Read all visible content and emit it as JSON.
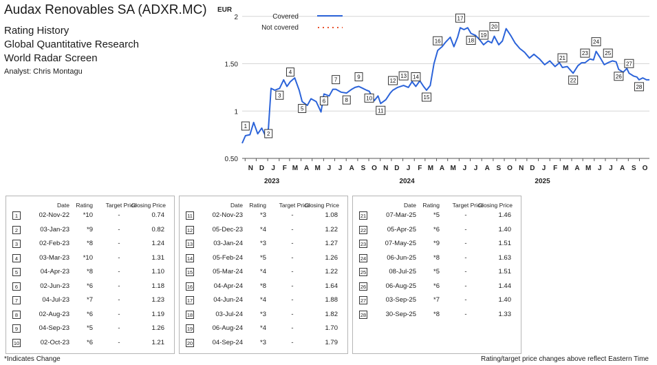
{
  "header": {
    "company": "Audax Renovables SA (ADXR.MC)",
    "line1": "Rating History",
    "line2": "Global Quantitative Research",
    "line3": "World Radar Screen",
    "analyst": "Analyst: Chris Montagu"
  },
  "table_headers": {
    "date": "Date",
    "rating": "Rating",
    "target": "Target Price",
    "close": "Closing Price"
  },
  "ratings": [
    {
      "n": "1",
      "date": "02-Nov-22",
      "rating": "*10",
      "target": "-",
      "close": "0.74"
    },
    {
      "n": "2",
      "date": "03-Jan-23",
      "rating": "*9",
      "target": "-",
      "close": "0.82"
    },
    {
      "n": "3",
      "date": "02-Feb-23",
      "rating": "*8",
      "target": "-",
      "close": "1.24"
    },
    {
      "n": "4",
      "date": "03-Mar-23",
      "rating": "*10",
      "target": "-",
      "close": "1.31"
    },
    {
      "n": "5",
      "date": "04-Apr-23",
      "rating": "*8",
      "target": "-",
      "close": "1.10"
    },
    {
      "n": "6",
      "date": "02-Jun-23",
      "rating": "*6",
      "target": "-",
      "close": "1.18"
    },
    {
      "n": "7",
      "date": "04-Jul-23",
      "rating": "*7",
      "target": "-",
      "close": "1.23"
    },
    {
      "n": "8",
      "date": "02-Aug-23",
      "rating": "*6",
      "target": "-",
      "close": "1.19"
    },
    {
      "n": "9",
      "date": "04-Sep-23",
      "rating": "*5",
      "target": "-",
      "close": "1.26"
    },
    {
      "n": "10",
      "date": "02-Oct-23",
      "rating": "*6",
      "target": "-",
      "close": "1.21"
    },
    {
      "n": "11",
      "date": "02-Nov-23",
      "rating": "*3",
      "target": "-",
      "close": "1.08"
    },
    {
      "n": "12",
      "date": "05-Dec-23",
      "rating": "*4",
      "target": "-",
      "close": "1.22"
    },
    {
      "n": "13",
      "date": "03-Jan-24",
      "rating": "*3",
      "target": "-",
      "close": "1.27"
    },
    {
      "n": "14",
      "date": "05-Feb-24",
      "rating": "*5",
      "target": "-",
      "close": "1.26"
    },
    {
      "n": "15",
      "date": "05-Mar-24",
      "rating": "*4",
      "target": "-",
      "close": "1.22"
    },
    {
      "n": "16",
      "date": "04-Apr-24",
      "rating": "*8",
      "target": "-",
      "close": "1.64"
    },
    {
      "n": "17",
      "date": "04-Jun-24",
      "rating": "*4",
      "target": "-",
      "close": "1.88"
    },
    {
      "n": "18",
      "date": "03-Jul-24",
      "rating": "*3",
      "target": "-",
      "close": "1.82"
    },
    {
      "n": "19",
      "date": "06-Aug-24",
      "rating": "*4",
      "target": "-",
      "close": "1.70"
    },
    {
      "n": "20",
      "date": "04-Sep-24",
      "rating": "*3",
      "target": "-",
      "close": "1.79"
    },
    {
      "n": "21",
      "date": "07-Mar-25",
      "rating": "*5",
      "target": "-",
      "close": "1.46"
    },
    {
      "n": "22",
      "date": "05-Apr-25",
      "rating": "*6",
      "target": "-",
      "close": "1.40"
    },
    {
      "n": "23",
      "date": "07-May-25",
      "rating": "*9",
      "target": "-",
      "close": "1.51"
    },
    {
      "n": "24",
      "date": "06-Jun-25",
      "rating": "*8",
      "target": "-",
      "close": "1.63"
    },
    {
      "n": "25",
      "date": "08-Jul-25",
      "rating": "*5",
      "target": "-",
      "close": "1.51"
    },
    {
      "n": "26",
      "date": "06-Aug-25",
      "rating": "*6",
      "target": "-",
      "close": "1.44"
    },
    {
      "n": "27",
      "date": "03-Sep-25",
      "rating": "*7",
      "target": "-",
      "close": "1.40"
    },
    {
      "n": "28",
      "date": "30-Sep-25",
      "rating": "*8",
      "target": "-",
      "close": "1.33"
    }
  ],
  "footer": {
    "left": "*Indicates Change",
    "right": "Rating/target price changes above reflect Eastern Time"
  },
  "colors": {
    "covered": "#2b63d9",
    "not_covered": "#e8502a",
    "grid": "#d6d6d6"
  },
  "chart_data": {
    "type": "line",
    "ylabel": "EUR",
    "ylim": [
      0.5,
      2.1
    ],
    "yticks": [
      0.5,
      1,
      1.5,
      2
    ],
    "ytick_labels": [
      "0.50",
      "1",
      "1.50",
      "2"
    ],
    "xlim": [
      "2022-10-24",
      "2025-10-28"
    ],
    "month_ticks": [
      {
        "label": "N",
        "date": "2022-11-01"
      },
      {
        "label": "D",
        "date": "2022-12-01"
      },
      {
        "label": "J",
        "date": "2023-01-01"
      },
      {
        "label": "F",
        "date": "2023-02-01"
      },
      {
        "label": "M",
        "date": "2023-03-01"
      },
      {
        "label": "A",
        "date": "2023-04-01"
      },
      {
        "label": "M",
        "date": "2023-05-01"
      },
      {
        "label": "J",
        "date": "2023-06-01"
      },
      {
        "label": "J",
        "date": "2023-07-01"
      },
      {
        "label": "A",
        "date": "2023-08-01"
      },
      {
        "label": "S",
        "date": "2023-09-01"
      },
      {
        "label": "O",
        "date": "2023-10-01"
      },
      {
        "label": "N",
        "date": "2023-11-01"
      },
      {
        "label": "D",
        "date": "2023-12-01"
      },
      {
        "label": "J",
        "date": "2024-01-01"
      },
      {
        "label": "F",
        "date": "2024-02-01"
      },
      {
        "label": "M",
        "date": "2024-03-01"
      },
      {
        "label": "A",
        "date": "2024-04-01"
      },
      {
        "label": "M",
        "date": "2024-05-01"
      },
      {
        "label": "J",
        "date": "2024-06-01"
      },
      {
        "label": "J",
        "date": "2024-07-01"
      },
      {
        "label": "A",
        "date": "2024-08-01"
      },
      {
        "label": "S",
        "date": "2024-09-01"
      },
      {
        "label": "O",
        "date": "2024-10-01"
      },
      {
        "label": "N",
        "date": "2024-11-01"
      },
      {
        "label": "D",
        "date": "2024-12-01"
      },
      {
        "label": "J",
        "date": "2025-01-01"
      },
      {
        "label": "F",
        "date": "2025-02-01"
      },
      {
        "label": "M",
        "date": "2025-03-01"
      },
      {
        "label": "A",
        "date": "2025-04-01"
      },
      {
        "label": "M",
        "date": "2025-05-01"
      },
      {
        "label": "J",
        "date": "2025-06-01"
      },
      {
        "label": "J",
        "date": "2025-07-01"
      },
      {
        "label": "A",
        "date": "2025-08-01"
      },
      {
        "label": "S",
        "date": "2025-09-01"
      },
      {
        "label": "O",
        "date": "2025-10-01"
      }
    ],
    "year_labels": [
      {
        "label": "2023",
        "date": "2023-01-01"
      },
      {
        "label": "2024",
        "date": "2024-01-01"
      },
      {
        "label": "2025",
        "date": "2025-01-01"
      }
    ],
    "legend": [
      {
        "name": "Covered",
        "style": "solid"
      },
      {
        "name": "Not covered",
        "style": "dotted"
      }
    ],
    "legend_position": "top-center",
    "grid": "horizontal",
    "series": [
      {
        "name": "Covered",
        "points": [
          [
            "2022-10-24",
            0.66
          ],
          [
            "2022-11-02",
            0.74
          ],
          [
            "2022-11-14",
            0.75
          ],
          [
            "2022-11-24",
            0.88
          ],
          [
            "2022-12-05",
            0.76
          ],
          [
            "2022-12-16",
            0.82
          ],
          [
            "2022-12-28",
            0.72
          ],
          [
            "2023-01-03",
            0.82
          ],
          [
            "2023-01-10",
            1.24
          ],
          [
            "2023-01-20",
            1.22
          ],
          [
            "2023-02-02",
            1.24
          ],
          [
            "2023-02-13",
            1.33
          ],
          [
            "2023-02-22",
            1.26
          ],
          [
            "2023-03-03",
            1.31
          ],
          [
            "2023-03-15",
            1.35
          ],
          [
            "2023-03-27",
            1.22
          ],
          [
            "2023-04-04",
            1.1
          ],
          [
            "2023-04-18",
            1.06
          ],
          [
            "2023-04-28",
            1.13
          ],
          [
            "2023-05-12",
            1.1
          ],
          [
            "2023-05-25",
            0.99
          ],
          [
            "2023-06-02",
            1.18
          ],
          [
            "2023-06-16",
            1.16
          ],
          [
            "2023-06-26",
            1.23
          ],
          [
            "2023-07-04",
            1.23
          ],
          [
            "2023-07-18",
            1.2
          ],
          [
            "2023-08-02",
            1.19
          ],
          [
            "2023-08-16",
            1.23
          ],
          [
            "2023-08-25",
            1.25
          ],
          [
            "2023-09-04",
            1.26
          ],
          [
            "2023-09-15",
            1.24
          ],
          [
            "2023-09-25",
            1.22
          ],
          [
            "2023-10-02",
            1.21
          ],
          [
            "2023-10-16",
            1.11
          ],
          [
            "2023-10-26",
            1.16
          ],
          [
            "2023-11-02",
            1.08
          ],
          [
            "2023-11-16",
            1.12
          ],
          [
            "2023-11-28",
            1.19
          ],
          [
            "2023-12-05",
            1.22
          ],
          [
            "2023-12-18",
            1.25
          ],
          [
            "2024-01-03",
            1.27
          ],
          [
            "2024-01-16",
            1.25
          ],
          [
            "2024-01-26",
            1.31
          ],
          [
            "2024-02-05",
            1.26
          ],
          [
            "2024-02-16",
            1.32
          ],
          [
            "2024-02-26",
            1.26
          ],
          [
            "2024-03-05",
            1.22
          ],
          [
            "2024-03-15",
            1.27
          ],
          [
            "2024-03-25",
            1.5
          ],
          [
            "2024-04-04",
            1.64
          ],
          [
            "2024-04-16",
            1.68
          ],
          [
            "2024-04-26",
            1.73
          ],
          [
            "2024-05-08",
            1.78
          ],
          [
            "2024-05-18",
            1.68
          ],
          [
            "2024-05-28",
            1.78
          ],
          [
            "2024-06-04",
            1.88
          ],
          [
            "2024-06-14",
            1.86
          ],
          [
            "2024-06-24",
            1.88
          ],
          [
            "2024-07-03",
            1.82
          ],
          [
            "2024-07-15",
            1.8
          ],
          [
            "2024-07-25",
            1.76
          ],
          [
            "2024-08-06",
            1.7
          ],
          [
            "2024-08-18",
            1.74
          ],
          [
            "2024-08-28",
            1.72
          ],
          [
            "2024-09-04",
            1.79
          ],
          [
            "2024-09-16",
            1.7
          ],
          [
            "2024-09-26",
            1.74
          ],
          [
            "2024-10-06",
            1.87
          ],
          [
            "2024-10-18",
            1.8
          ],
          [
            "2024-10-30",
            1.72
          ],
          [
            "2024-11-12",
            1.66
          ],
          [
            "2024-11-25",
            1.62
          ],
          [
            "2024-12-08",
            1.56
          ],
          [
            "2024-12-20",
            1.6
          ],
          [
            "2025-01-04",
            1.55
          ],
          [
            "2025-01-18",
            1.49
          ],
          [
            "2025-02-01",
            1.53
          ],
          [
            "2025-02-15",
            1.47
          ],
          [
            "2025-02-27",
            1.51
          ],
          [
            "2025-03-07",
            1.46
          ],
          [
            "2025-03-20",
            1.47
          ],
          [
            "2025-04-05",
            1.4
          ],
          [
            "2025-04-18",
            1.48
          ],
          [
            "2025-04-28",
            1.51
          ],
          [
            "2025-05-07",
            1.51
          ],
          [
            "2025-05-20",
            1.55
          ],
          [
            "2025-05-30",
            1.54
          ],
          [
            "2025-06-06",
            1.63
          ],
          [
            "2025-06-16",
            1.57
          ],
          [
            "2025-06-28",
            1.49
          ],
          [
            "2025-07-08",
            1.51
          ],
          [
            "2025-07-20",
            1.53
          ],
          [
            "2025-07-30",
            1.52
          ],
          [
            "2025-08-06",
            1.44
          ],
          [
            "2025-08-18",
            1.41
          ],
          [
            "2025-08-28",
            1.45
          ],
          [
            "2025-09-03",
            1.4
          ],
          [
            "2025-09-15",
            1.37
          ],
          [
            "2025-09-24",
            1.36
          ],
          [
            "2025-09-30",
            1.33
          ],
          [
            "2025-10-10",
            1.35
          ],
          [
            "2025-10-20",
            1.33
          ],
          [
            "2025-10-28",
            1.33
          ]
        ]
      }
    ],
    "markers": [
      {
        "label": "1",
        "date": "2022-11-02",
        "value": 0.74
      },
      {
        "label": "2",
        "date": "2023-01-03",
        "value": 0.82
      },
      {
        "label": "3",
        "date": "2023-02-02",
        "value": 1.24
      },
      {
        "label": "4",
        "date": "2023-03-03",
        "value": 1.31
      },
      {
        "label": "5",
        "date": "2023-04-04",
        "value": 1.1
      },
      {
        "label": "6",
        "date": "2023-06-02",
        "value": 1.18
      },
      {
        "label": "7",
        "date": "2023-07-04",
        "value": 1.23
      },
      {
        "label": "8",
        "date": "2023-08-02",
        "value": 1.19
      },
      {
        "label": "9",
        "date": "2023-09-04",
        "value": 1.26
      },
      {
        "label": "10",
        "date": "2023-10-02",
        "value": 1.21
      },
      {
        "label": "11",
        "date": "2023-11-02",
        "value": 1.08
      },
      {
        "label": "12",
        "date": "2023-12-05",
        "value": 1.22
      },
      {
        "label": "13",
        "date": "2024-01-03",
        "value": 1.27
      },
      {
        "label": "14",
        "date": "2024-02-05",
        "value": 1.26
      },
      {
        "label": "15",
        "date": "2024-03-05",
        "value": 1.22
      },
      {
        "label": "16",
        "date": "2024-04-04",
        "value": 1.64
      },
      {
        "label": "17",
        "date": "2024-06-04",
        "value": 1.88
      },
      {
        "label": "18",
        "date": "2024-07-03",
        "value": 1.82
      },
      {
        "label": "19",
        "date": "2024-08-06",
        "value": 1.7
      },
      {
        "label": "20",
        "date": "2024-09-04",
        "value": 1.79
      },
      {
        "label": "21",
        "date": "2025-03-07",
        "value": 1.46
      },
      {
        "label": "22",
        "date": "2025-04-05",
        "value": 1.4
      },
      {
        "label": "23",
        "date": "2025-05-07",
        "value": 1.51
      },
      {
        "label": "24",
        "date": "2025-06-06",
        "value": 1.63
      },
      {
        "label": "25",
        "date": "2025-07-08",
        "value": 1.51
      },
      {
        "label": "26",
        "date": "2025-08-06",
        "value": 1.44
      },
      {
        "label": "27",
        "date": "2025-09-03",
        "value": 1.4
      },
      {
        "label": "28",
        "date": "2025-09-30",
        "value": 1.33
      }
    ]
  }
}
